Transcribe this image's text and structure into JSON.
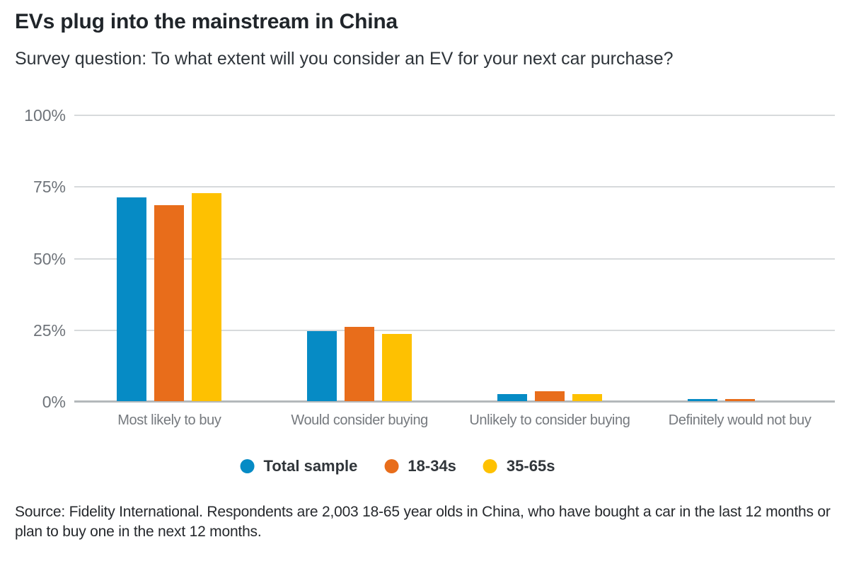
{
  "page": {
    "title": "EVs plug into the mainstream in China",
    "subtitle": "Survey question: To what extent will you consider an EV for your next car purchase?",
    "source": "Source: Fidelity International. Respondents are 2,003 18-65 year olds in China, who have bought a car in the last 12 months or plan to buy one in the next 12 months."
  },
  "colors": {
    "series_blue": "#068bc5",
    "series_orange": "#e86d1b",
    "series_yellow": "#fec101",
    "gridline": "#d7dadc",
    "axis_line": "#b4b8bb",
    "tick_text": "#6f747a",
    "category_text": "#75797e"
  },
  "chart_data": {
    "type": "bar",
    "title": "EVs plug into the mainstream in China",
    "subtitle": "Survey question: To what extent will you consider an EV for your next car purchase?",
    "categories": [
      "Most likely to buy",
      "Would consider buying",
      "Unlikely to consider buying",
      "Definitely would not buy"
    ],
    "series": [
      {
        "name": "Total sample",
        "color": "#068bc5",
        "values": [
          71,
          24.5,
          2.5,
          0.8
        ]
      },
      {
        "name": "18-34s",
        "color": "#e86d1b",
        "values": [
          68.5,
          26,
          3.5,
          0.8
        ]
      },
      {
        "name": "35-65s",
        "color": "#fec101",
        "values": [
          72.5,
          23.5,
          2.5,
          0
        ]
      }
    ],
    "xlabel": "",
    "ylabel": "",
    "y_ticks": [
      "0%",
      "25%",
      "50%",
      "75%",
      "100%"
    ],
    "y_tick_values": [
      0,
      25,
      50,
      75,
      100
    ],
    "ylim": [
      0,
      100
    ],
    "grid": true,
    "legend_position": "bottom"
  }
}
